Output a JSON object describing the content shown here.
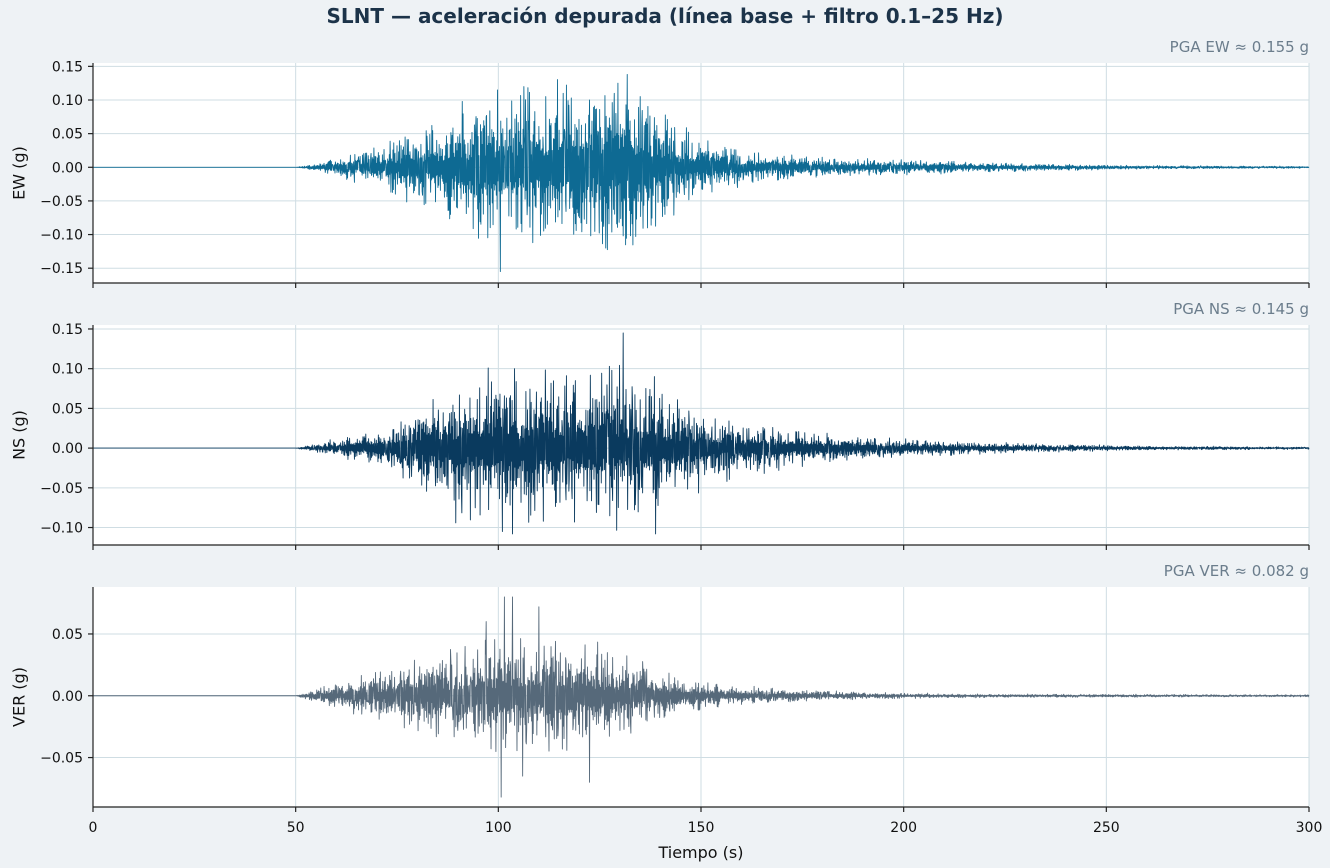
{
  "chart_data": {
    "type": "line",
    "title": "SLNT — aceleración depurada (línea base + filtro 0.1–25 Hz)",
    "xlabel": "Tiempo (s)",
    "xlim": [
      0,
      300
    ],
    "xticks": [
      0,
      50,
      100,
      150,
      200,
      250,
      300
    ],
    "xtick_labels": [
      "0",
      "50",
      "100",
      "150",
      "200",
      "250",
      "300"
    ],
    "grid": true,
    "panels": [
      {
        "name": "EW",
        "ylabel": "EW (g)",
        "annotation": "PGA EW ≈ 0.155 g",
        "pga": 0.155,
        "color": "#0e6a93",
        "ylim": [
          -0.172,
          0.155
        ],
        "yticks": [
          -0.15,
          -0.1,
          -0.05,
          0.0,
          0.05,
          0.1,
          0.15
        ],
        "ytick_labels": [
          "−0.15",
          "−0.10",
          "−0.05",
          "0.00",
          "0.05",
          "0.10",
          "0.15"
        ],
        "envelope": {
          "t": [
            0,
            50,
            55,
            65,
            75,
            85,
            95,
            105,
            115,
            125,
            130,
            135,
            140,
            150,
            160,
            170,
            180,
            200,
            230,
            260,
            300
          ],
          "amp": [
            0,
            0,
            0.004,
            0.016,
            0.028,
            0.05,
            0.075,
            0.085,
            0.085,
            0.09,
            0.09,
            0.08,
            0.06,
            0.03,
            0.018,
            0.014,
            0.01,
            0.008,
            0.004,
            0.002,
            0.001
          ]
        },
        "peaks": [
          {
            "t": 100.5,
            "v": -0.155
          },
          {
            "t": 99.8,
            "v": 0.115
          },
          {
            "t": 131.8,
            "v": 0.138
          },
          {
            "t": 129.5,
            "v": 0.125
          },
          {
            "t": 126.5,
            "v": -0.12
          },
          {
            "t": 108.5,
            "v": -0.112
          },
          {
            "t": 116.0,
            "v": 0.11
          },
          {
            "t": 122.5,
            "v": 0.1
          }
        ]
      },
      {
        "name": "NS",
        "ylabel": "NS (g)",
        "annotation": "PGA NS ≈ 0.145 g",
        "pga": 0.145,
        "color": "#0a3a5e",
        "ylim": [
          -0.122,
          0.155
        ],
        "yticks": [
          -0.1,
          -0.05,
          0.0,
          0.05,
          0.1,
          0.15
        ],
        "ytick_labels": [
          "−0.10",
          "−0.05",
          "0.00",
          "0.05",
          "0.10",
          "0.15"
        ],
        "envelope": {
          "t": [
            0,
            50,
            55,
            65,
            75,
            82,
            90,
            100,
            110,
            120,
            130,
            140,
            150,
            165,
            180,
            200,
            230,
            260,
            300
          ],
          "amp": [
            0,
            0,
            0.004,
            0.012,
            0.022,
            0.045,
            0.06,
            0.065,
            0.068,
            0.07,
            0.07,
            0.05,
            0.035,
            0.022,
            0.012,
            0.008,
            0.004,
            0.002,
            0.001
          ]
        },
        "peaks": [
          {
            "t": 130.8,
            "v": 0.145
          },
          {
            "t": 101.0,
            "v": -0.105
          },
          {
            "t": 103.5,
            "v": -0.108
          },
          {
            "t": 138.8,
            "v": -0.108
          },
          {
            "t": 104.0,
            "v": 0.1
          },
          {
            "t": 138.5,
            "v": 0.09
          },
          {
            "t": 128.0,
            "v": 0.098
          },
          {
            "t": 119.0,
            "v": 0.085
          }
        ]
      },
      {
        "name": "VER",
        "ylabel": "VER (g)",
        "annotation": "PGA VER ≈ 0.082 g",
        "pga": 0.082,
        "color": "#56697a",
        "ylim": [
          -0.09,
          0.088
        ],
        "yticks": [
          -0.05,
          0.0,
          0.05
        ],
        "ytick_labels": [
          "−0.05",
          "0.00",
          "0.05"
        ],
        "envelope": {
          "t": [
            0,
            50,
            55,
            65,
            80,
            95,
            105,
            115,
            125,
            135,
            145,
            155,
            170,
            190,
            220,
            260,
            300
          ],
          "amp": [
            0,
            0,
            0.004,
            0.01,
            0.02,
            0.03,
            0.036,
            0.032,
            0.028,
            0.02,
            0.01,
            0.006,
            0.004,
            0.002,
            0.001,
            0.0008,
            0.0006
          ]
        },
        "peaks": [
          {
            "t": 100.7,
            "v": -0.082
          },
          {
            "t": 101.5,
            "v": 0.08
          },
          {
            "t": 103.5,
            "v": 0.08
          },
          {
            "t": 106.0,
            "v": -0.065
          },
          {
            "t": 110.0,
            "v": 0.072
          },
          {
            "t": 122.5,
            "v": -0.07
          },
          {
            "t": 97.0,
            "v": 0.06
          }
        ]
      }
    ]
  }
}
